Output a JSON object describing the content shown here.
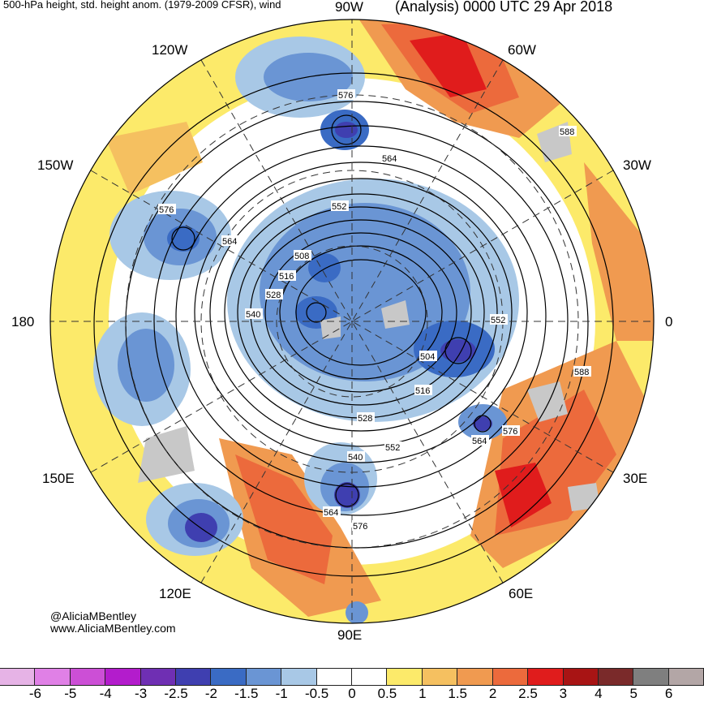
{
  "header": {
    "left_title": "500-hPa height, std. height anom. (1979-2009 CFSR), wind",
    "right_title": "(Analysis) 0000 UTC 29 Apr 2018"
  },
  "longitudes": {
    "lon_90w": "90W",
    "lon_120w": "120W",
    "lon_60w": "60W",
    "lon_150w": "150W",
    "lon_30w": "30W",
    "lon_180": "180",
    "lon_0": "0",
    "lon_150e": "150E",
    "lon_30e": "30E",
    "lon_120e": "120E",
    "lon_60e": "60E",
    "lon_90e": "90E"
  },
  "contour_labels": [
    "576",
    "564",
    "552",
    "508",
    "516",
    "528",
    "540",
    "576",
    "564",
    "552",
    "504",
    "516",
    "528",
    "540",
    "552",
    "564",
    "576",
    "588",
    "588",
    "564",
    "576"
  ],
  "credits": {
    "handle": "@AliciaMBentley",
    "website": "www.AliciaMBentley.com"
  },
  "colorbar": {
    "colors": [
      "#e6b3e6",
      "#e080e6",
      "#cc4fd6",
      "#b31ccc",
      "#6f2fb3",
      "#3f3fb0",
      "#3a6bc4",
      "#6a95d4",
      "#a8c8e6",
      "#ffffff",
      "#ffffff",
      "#fcea6a",
      "#f5c060",
      "#f09a50",
      "#ec6a3c",
      "#e01c1c",
      "#a81414",
      "#7a2a2a",
      "#7f7f7f",
      "#b3a6a6"
    ],
    "ticks": [
      "-6",
      "-5",
      "-4",
      "-3",
      "-2.5",
      "-2",
      "-1.5",
      "-1",
      "-0.5",
      "0",
      "0.5",
      "1",
      "1.5",
      "2",
      "2.5",
      "3",
      "4",
      "5",
      "6"
    ]
  }
}
